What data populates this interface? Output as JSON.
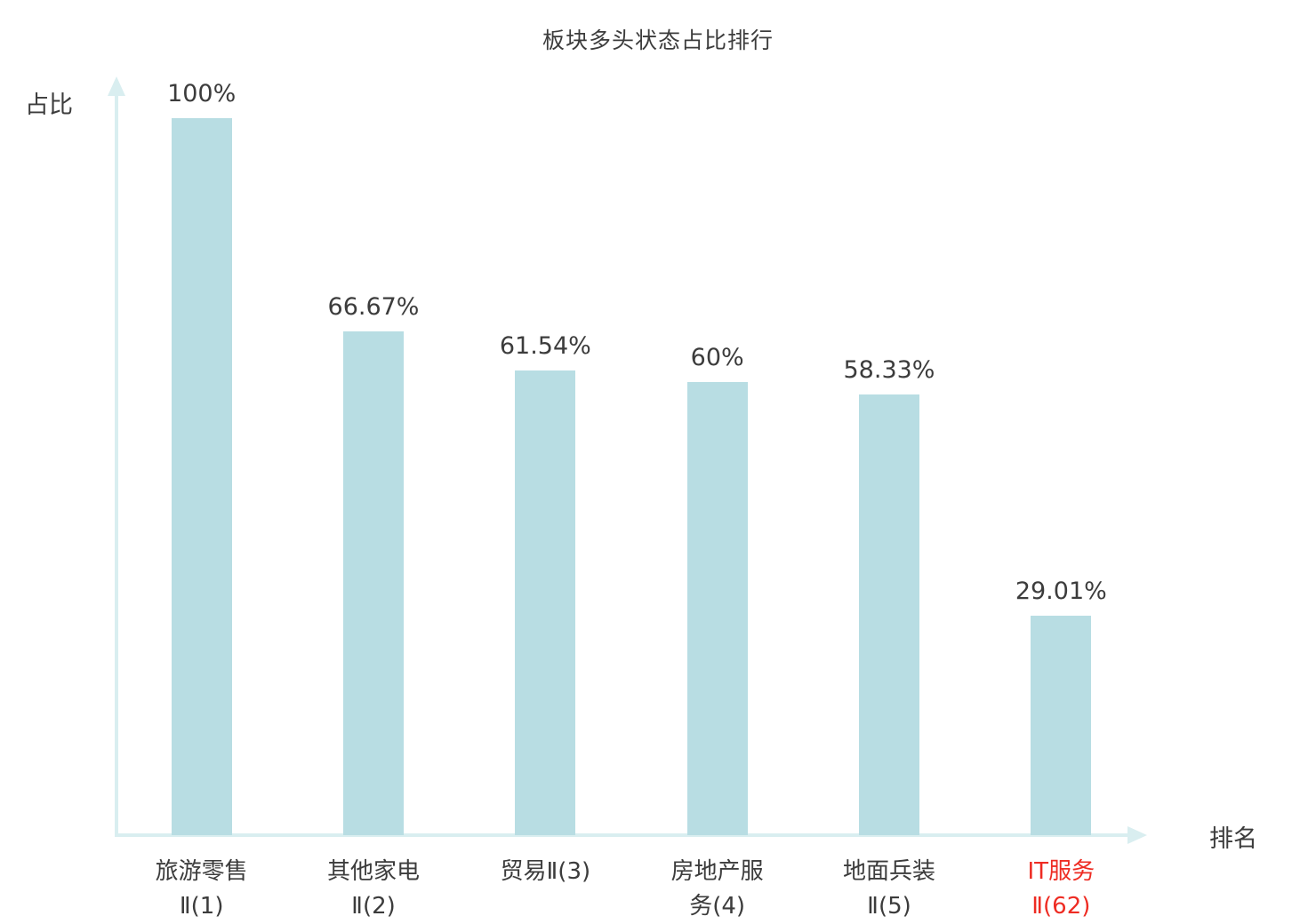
{
  "chart_data": {
    "type": "bar",
    "title": "板块多头状态占比排行",
    "xlabel": "排名",
    "ylabel": "占比",
    "ylim": [
      0,
      100
    ],
    "categories": [
      "旅游零售Ⅱ(1)",
      "其他家电Ⅱ(2)",
      "贸易Ⅱ(3)",
      "房地产服务(4)",
      "地面兵装Ⅱ(5)",
      "IT服务Ⅱ(62)"
    ],
    "category_lines": [
      [
        "旅游零售",
        "Ⅱ(1)"
      ],
      [
        "其他家电",
        "Ⅱ(2)"
      ],
      [
        "贸易Ⅱ(3)"
      ],
      [
        "房地产服",
        "务(4)"
      ],
      [
        "地面兵装",
        "Ⅱ(5)"
      ],
      [
        "IT服务",
        "Ⅱ(62)"
      ]
    ],
    "values": [
      100,
      66.67,
      61.54,
      60,
      58.33,
      29.01
    ],
    "value_labels": [
      "100%",
      "66.67%",
      "61.54%",
      "60%",
      "58.33%",
      "29.01%"
    ],
    "highlight_index": 5,
    "colors": {
      "bar_fill": "#b8dde3",
      "axis": "#d9eef0",
      "highlight_text": "#ee2c23",
      "text": "#3c3c3c"
    },
    "grid": false,
    "legend": "none"
  }
}
